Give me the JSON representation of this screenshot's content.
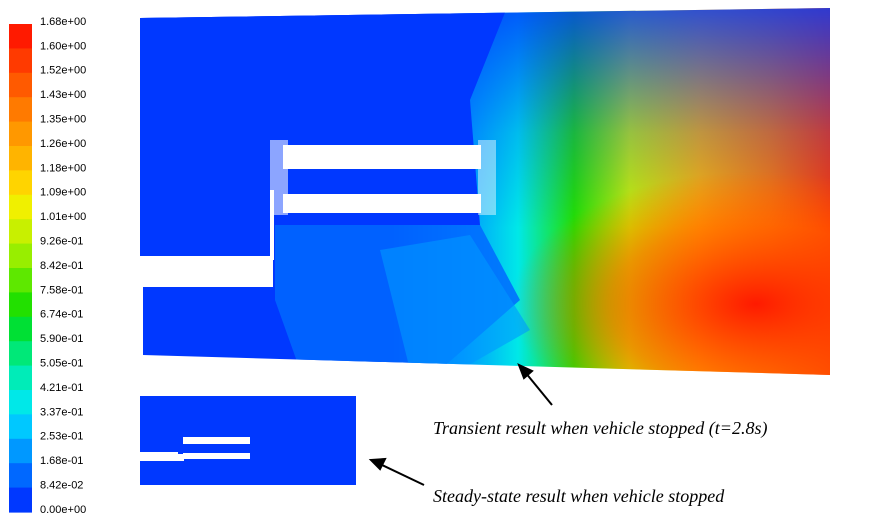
{
  "legend": {
    "ticks": [
      "1.68e+00",
      "1.60e+00",
      "1.52e+00",
      "1.43e+00",
      "1.35e+00",
      "1.26e+00",
      "1.18e+00",
      "1.09e+00",
      "1.01e+00",
      "9.26e-01",
      "8.42e-01",
      "7.58e-01",
      "6.74e-01",
      "5.90e-01",
      "5.05e-01",
      "4.21e-01",
      "3.37e-01",
      "2.53e-01",
      "1.68e-01",
      "8.42e-02",
      "0.00e+00"
    ],
    "colors": [
      "#ff1a00",
      "#ff3a00",
      "#ff5a00",
      "#ff7a00",
      "#ff9800",
      "#ffb400",
      "#ffd400",
      "#f0f000",
      "#c8f000",
      "#98ee00",
      "#5ee800",
      "#22e000",
      "#00e034",
      "#00e878",
      "#00ecb8",
      "#00e8e8",
      "#00c8ff",
      "#0098ff",
      "#0068ff",
      "#0038ff"
    ]
  },
  "captions": {
    "transient": "Transient result when vehicle stopped (t=2.8s)",
    "steady": "Steady-state result when vehicle stopped"
  }
}
